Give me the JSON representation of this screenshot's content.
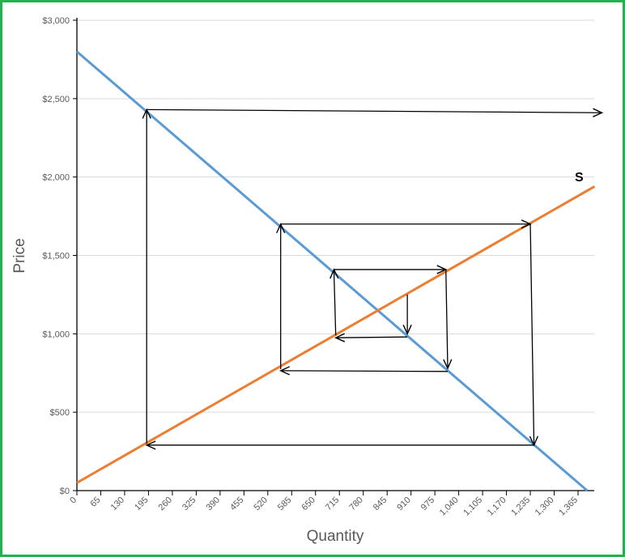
{
  "chart_data": {
    "type": "line",
    "title": "",
    "xlabel": "Quantity",
    "ylabel": "Price",
    "xlim": [
      0,
      1365
    ],
    "ylim": [
      0,
      3000
    ],
    "x_ticks": [
      "0",
      "65",
      "130",
      "195",
      "260",
      "325",
      "390",
      "455",
      "520",
      "585",
      "650",
      "715",
      "780",
      "845",
      "910",
      "975",
      "1,040",
      "1,105",
      "1,170",
      "1,235",
      "1,300",
      "1,365"
    ],
    "y_ticks": [
      "$0",
      "$500",
      "$1,000",
      "$1,500",
      "$2,000",
      "$2,500",
      "$3,000"
    ],
    "y_tick_values": [
      0,
      500,
      1000,
      1500,
      2000,
      2500,
      3000
    ],
    "grid": "horizontal",
    "series": [
      {
        "label": "",
        "color": "#5b9bd5",
        "x": [
          0,
          1390
        ],
        "y": [
          2800,
          0
        ]
      },
      {
        "label": "S",
        "color": "#ed7d31",
        "x": [
          0,
          1410
        ],
        "y": [
          50,
          1940
        ]
      }
    ],
    "cobweb_arrows": [
      {
        "from": [
          190,
          300
        ],
        "to": [
          190,
          2430
        ]
      },
      {
        "from": [
          190,
          2430
        ],
        "to": [
          1430,
          2410
        ]
      },
      {
        "from": [
          555,
          775
        ],
        "to": [
          555,
          1700
        ]
      },
      {
        "from": [
          555,
          1700
        ],
        "to": [
          1235,
          1700
        ]
      },
      {
        "from": [
          1235,
          1700
        ],
        "to": [
          1245,
          290
        ]
      },
      {
        "from": [
          1245,
          290
        ],
        "to": [
          190,
          290
        ]
      },
      {
        "from": [
          705,
          990
        ],
        "to": [
          700,
          1410
        ]
      },
      {
        "from": [
          700,
          1410
        ],
        "to": [
          1005,
          1410
        ]
      },
      {
        "from": [
          1005,
          1410
        ],
        "to": [
          1010,
          780
        ]
      },
      {
        "from": [
          1010,
          760
        ],
        "to": [
          555,
          765
        ]
      },
      {
        "from": [
          900,
          1250
        ],
        "to": [
          900,
          1000
        ]
      },
      {
        "from": [
          900,
          980
        ],
        "to": [
          705,
          975
        ]
      }
    ]
  }
}
